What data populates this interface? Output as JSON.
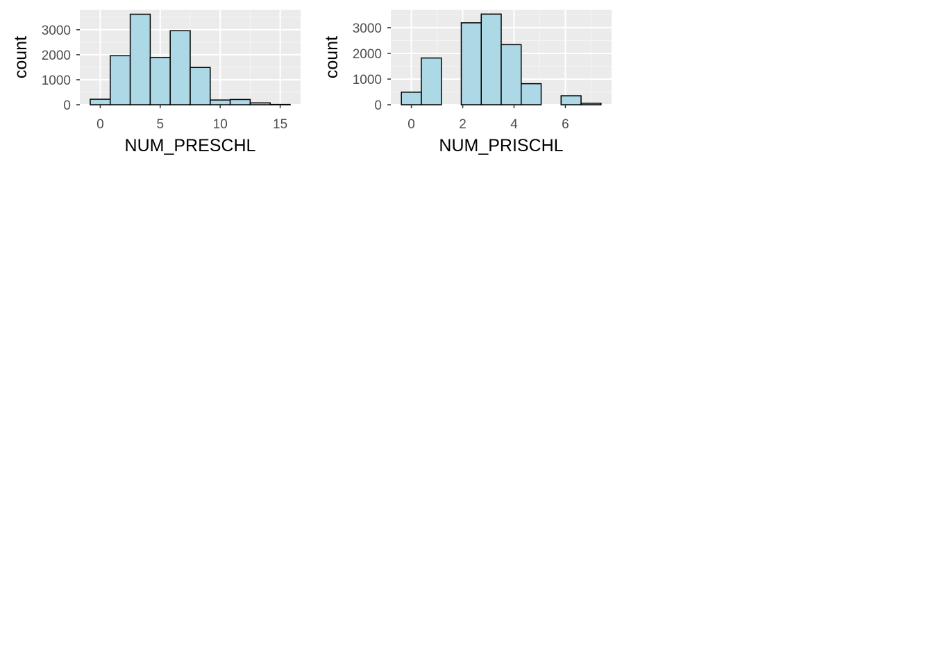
{
  "chart_data": [
    {
      "type": "bar",
      "subtype": "histogram",
      "xlabel": "NUM_PRESCHL",
      "ylabel": "count",
      "xlim": [
        -1.7,
        16.7
      ],
      "ylim": [
        0,
        3800
      ],
      "xticks": [
        0,
        5,
        10,
        15
      ],
      "xtick_labels": [
        "0",
        "5",
        "10",
        "15"
      ],
      "yticks": [
        0,
        1000,
        2000,
        3000
      ],
      "ytick_labels": [
        "0",
        "1000",
        "2000",
        "3000"
      ],
      "grid": true,
      "bins": [
        {
          "x0": -0.833,
          "x1": 0.833,
          "count": 220
        },
        {
          "x0": 0.833,
          "x1": 2.5,
          "count": 1960
        },
        {
          "x0": 2.5,
          "x1": 4.167,
          "count": 3620
        },
        {
          "x0": 4.167,
          "x1": 5.833,
          "count": 1890
        },
        {
          "x0": 5.833,
          "x1": 7.5,
          "count": 2960
        },
        {
          "x0": 7.5,
          "x1": 9.167,
          "count": 1490
        },
        {
          "x0": 9.167,
          "x1": 10.833,
          "count": 190
        },
        {
          "x0": 10.833,
          "x1": 12.5,
          "count": 210
        },
        {
          "x0": 12.5,
          "x1": 14.167,
          "count": 75
        },
        {
          "x0": 14.167,
          "x1": 15.833,
          "count": 10
        }
      ]
    },
    {
      "type": "bar",
      "subtype": "histogram",
      "xlabel": "NUM_PRISCHL",
      "ylabel": "count",
      "xlim": [
        -0.8,
        7.8
      ],
      "ylim": [
        0,
        3700
      ],
      "xticks": [
        0,
        2,
        4,
        6
      ],
      "xtick_labels": [
        "0",
        "2",
        "4",
        "6"
      ],
      "yticks": [
        0,
        1000,
        2000,
        3000
      ],
      "ytick_labels": [
        "0",
        "1000",
        "2000",
        "3000"
      ],
      "grid": true,
      "bins": [
        {
          "x0": -0.389,
          "x1": 0.389,
          "count": 490
        },
        {
          "x0": 0.389,
          "x1": 1.167,
          "count": 1820
        },
        {
          "x0": 1.167,
          "x1": 1.944,
          "count": 0
        },
        {
          "x0": 1.944,
          "x1": 2.722,
          "count": 3190
        },
        {
          "x0": 2.722,
          "x1": 3.5,
          "count": 3530
        },
        {
          "x0": 3.5,
          "x1": 4.278,
          "count": 2340
        },
        {
          "x0": 4.278,
          "x1": 5.056,
          "count": 820
        },
        {
          "x0": 5.056,
          "x1": 5.833,
          "count": 0
        },
        {
          "x0": 5.833,
          "x1": 6.611,
          "count": 350
        },
        {
          "x0": 6.611,
          "x1": 7.389,
          "count": 60
        }
      ]
    }
  ],
  "colors": {
    "panel_background": "#ebebeb",
    "grid_major": "#ffffff",
    "grid_minor": "#f5f5f5",
    "bar_fill": "#add8e6",
    "bar_outline": "#000000",
    "tick_label": "#4d4d4d",
    "tick_mark": "#333333",
    "axis_title": "#000000"
  }
}
